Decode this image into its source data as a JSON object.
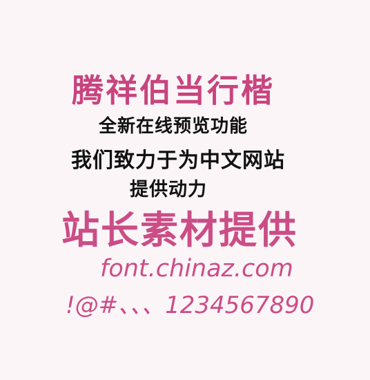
{
  "preview": {
    "font_name": "腾祥伯当行楷",
    "line1": "全新在线预览功能",
    "line2": "我们致力于为中文网站",
    "line3": "提供动力",
    "brand": "站长素材提供",
    "url": "font.chinaz.com",
    "sample_chars": "!@#、、、1234567890"
  },
  "colors": {
    "background": "#fbf5f8",
    "accent": "#cc4d86",
    "text": "#111111"
  }
}
